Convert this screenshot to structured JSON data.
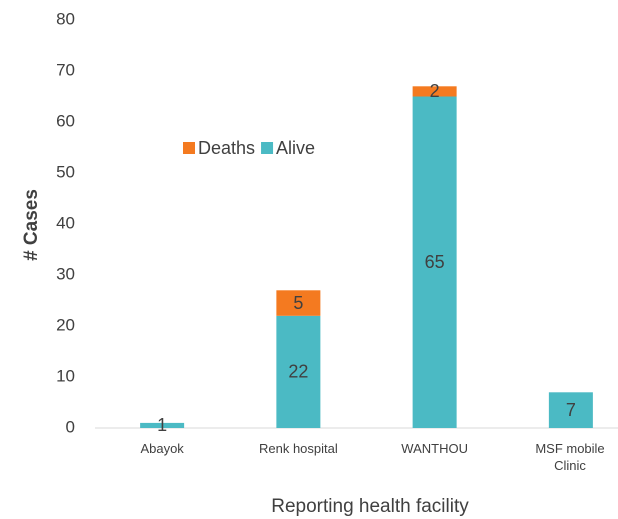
{
  "chart_data": {
    "type": "stacked_bar",
    "categories": [
      "Abayok",
      "Renk hospital",
      "WANTHOU",
      "MSF mobile Clinic"
    ],
    "series": [
      {
        "name": "Alive",
        "color": "#4bbac4",
        "values": [
          1,
          22,
          65,
          7
        ]
      },
      {
        "name": "Deaths",
        "color": "#f47a20",
        "values": [
          null,
          5,
          2,
          null
        ]
      }
    ],
    "ylim": [
      0,
      80
    ],
    "yticks": [
      0,
      10,
      20,
      30,
      40,
      50,
      60,
      70,
      80
    ],
    "ylabel": "# Cases",
    "xlabel": "Reporting health facility",
    "legend": "upper-left",
    "grid": false
  }
}
